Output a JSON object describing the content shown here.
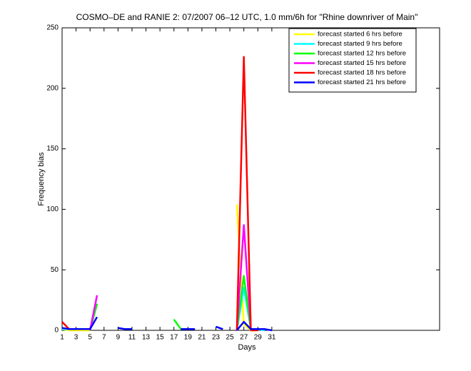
{
  "chart_data": {
    "type": "line",
    "title": "COSMO–DE and RANIE 2: 07/2007 06–12 UTC, 1.0 mm/6h for \"Rhine downriver of Main\"",
    "x_label": "Days",
    "y_label": "Frequency bias",
    "x": [
      1,
      2,
      3,
      4,
      5,
      6,
      7,
      8,
      9,
      10,
      11,
      12,
      13,
      14,
      15,
      16,
      17,
      18,
      19,
      20,
      21,
      22,
      23,
      24,
      25,
      26,
      27,
      28,
      29,
      30,
      31
    ],
    "xlim": [
      1,
      55
    ],
    "xticks": [
      1,
      3,
      5,
      7,
      9,
      11,
      13,
      15,
      17,
      19,
      21,
      23,
      25,
      27,
      29,
      31
    ],
    "ylim": [
      0,
      250
    ],
    "yticks": [
      0,
      50,
      100,
      150,
      200,
      250
    ],
    "legend": "upper right",
    "series": [
      {
        "name": "forecast started 6 hrs before",
        "color": "#ffff00",
        "values": [
          1,
          0,
          0,
          0,
          0,
          null,
          null,
          null,
          null,
          null,
          null,
          null,
          null,
          null,
          null,
          null,
          null,
          null,
          null,
          null,
          null,
          null,
          null,
          null,
          null,
          104,
          5,
          0,
          0,
          null,
          null
        ]
      },
      {
        "name": "forecast started 9 hrs before",
        "color": "#00ffff",
        "values": [
          1,
          1,
          1,
          1,
          1,
          null,
          null,
          null,
          null,
          null,
          null,
          null,
          1,
          null,
          null,
          null,
          null,
          null,
          null,
          null,
          null,
          null,
          null,
          null,
          null,
          0,
          35,
          1,
          1,
          0,
          null
        ]
      },
      {
        "name": "forecast started 12 hrs before",
        "color": "#00ff00",
        "values": [
          null,
          null,
          null,
          null,
          0,
          22,
          null,
          null,
          null,
          null,
          null,
          null,
          null,
          null,
          null,
          null,
          9,
          1,
          1,
          null,
          null,
          null,
          null,
          null,
          null,
          0,
          45,
          0,
          null,
          null,
          null
        ]
      },
      {
        "name": "forecast started 15 hrs before",
        "color": "#ff00ff",
        "values": [
          null,
          null,
          null,
          null,
          0,
          29,
          null,
          null,
          null,
          null,
          null,
          null,
          null,
          null,
          null,
          null,
          null,
          null,
          null,
          null,
          null,
          null,
          null,
          null,
          null,
          0,
          87,
          0,
          null,
          null,
          null
        ]
      },
      {
        "name": "forecast started 18 hrs before",
        "color": "#ff0000",
        "values": [
          7,
          1,
          1,
          1,
          1,
          null,
          null,
          null,
          null,
          null,
          null,
          null,
          null,
          null,
          null,
          null,
          null,
          null,
          null,
          null,
          null,
          null,
          null,
          null,
          null,
          0,
          226,
          0,
          0,
          null,
          null
        ]
      },
      {
        "name": "forecast started 21 hrs before",
        "color": "#0000ff",
        "values": [
          2,
          1,
          1,
          1,
          1,
          11,
          null,
          null,
          2,
          1,
          1,
          null,
          null,
          null,
          null,
          null,
          null,
          1,
          1,
          1,
          null,
          null,
          3,
          1,
          null,
          0,
          7,
          1,
          1,
          1,
          0
        ]
      }
    ]
  }
}
